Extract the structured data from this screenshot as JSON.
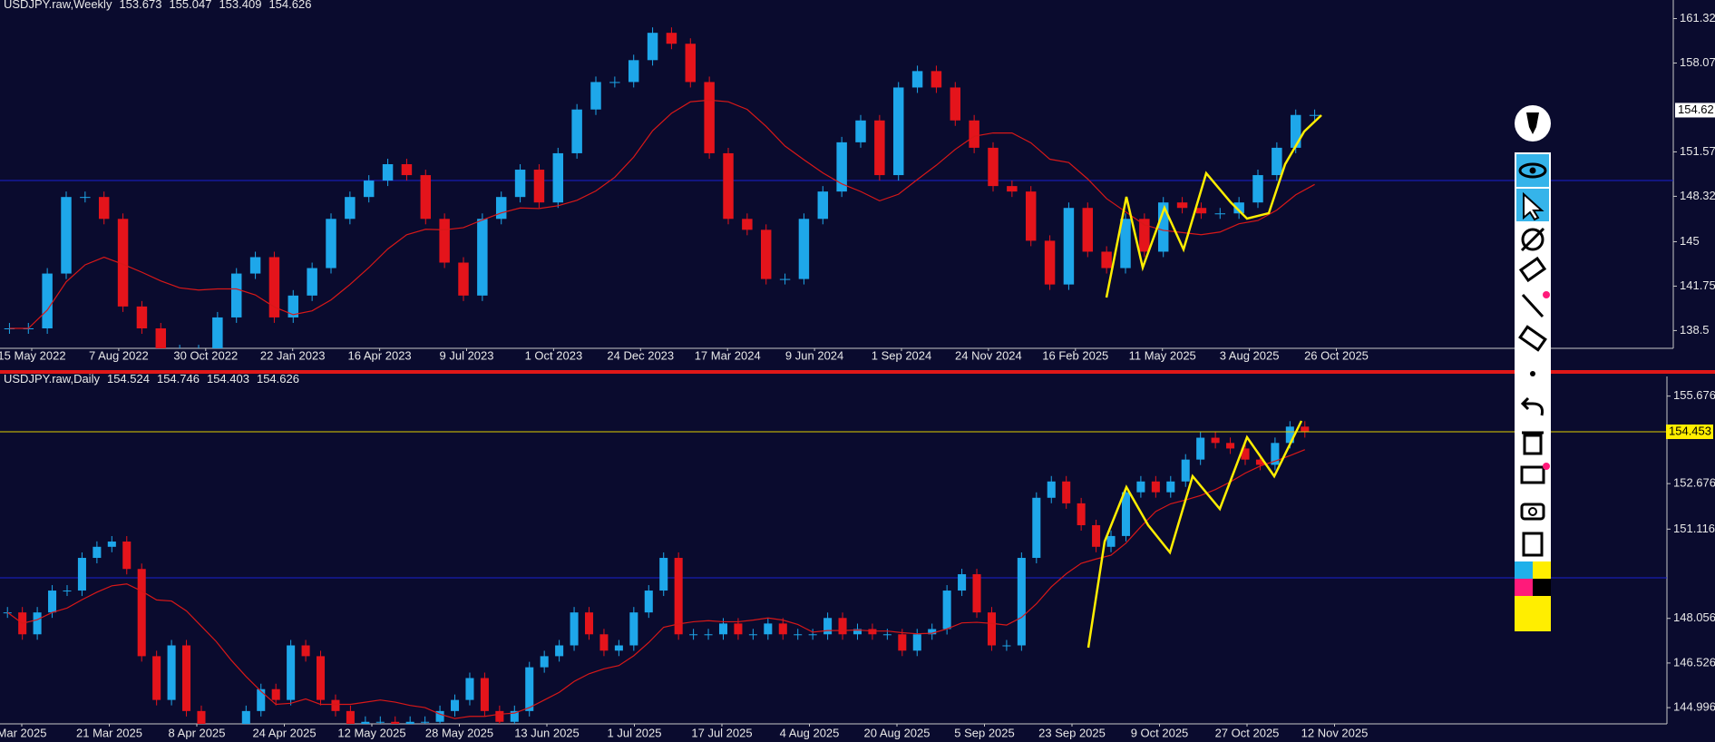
{
  "chart_data": [
    {
      "type": "candlestick",
      "title": "USDJPY.raw,Weekly",
      "ohlc": [
        153.673,
        155.047,
        153.409,
        154.626
      ],
      "ylim": [
        137.2,
        162.68
      ],
      "yticks": [
        161.32,
        158.07,
        151.57,
        148.32,
        145.0,
        141.75,
        138.5
      ],
      "last_price": 154.62,
      "categories": [
        "15 May 2022",
        "7 Aug 2022",
        "30 Oct 2022",
        "22 Jan 2023",
        "16 Apr 2023",
        "9 Jul 2023",
        "1 Oct 2023",
        "24 Dec 2023",
        "17 Mar 2024",
        "9 Jun 2024",
        "1 Sep 2024",
        "24 Nov 2024",
        "16 Feb 2025",
        "11 May 2025",
        "3 Aug 2025",
        "26 Oct 2025"
      ],
      "closes": [
        138.66,
        138.66,
        142.67,
        148.27,
        148.27,
        146.67,
        140.26,
        138.66,
        137.06,
        137.06,
        137.06,
        139.46,
        142.67,
        143.87,
        139.46,
        141.06,
        143.07,
        146.67,
        148.27,
        149.47,
        150.67,
        149.87,
        146.67,
        143.47,
        141.06,
        146.67,
        148.27,
        150.27,
        147.87,
        151.47,
        154.67,
        156.68,
        156.68,
        158.28,
        160.28,
        159.48,
        156.68,
        151.47,
        146.67,
        145.87,
        142.27,
        142.27,
        146.67,
        148.67,
        152.27,
        153.87,
        149.87,
        156.28,
        157.48,
        156.28,
        153.87,
        151.87,
        149.07,
        148.67,
        145.07,
        141.87,
        147.47,
        144.27,
        143.07,
        146.67,
        144.27,
        147.87,
        147.47,
        147.07,
        147.07,
        147.87,
        149.87,
        151.87,
        154.27,
        154.27
      ]
    },
    {
      "type": "candlestick",
      "title": "USDJPY.raw,Daily",
      "ohlc": [
        154.524,
        154.746,
        154.403,
        154.626
      ],
      "ylim": [
        144.44,
        156.35
      ],
      "yticks": [
        155.676,
        152.676,
        151.116,
        148.056,
        146.526,
        144.996
      ],
      "level_price": 154.453,
      "categories": [
        "Mar 2025",
        "21 Mar 2025",
        "8 Apr 2025",
        "24 Apr 2025",
        "12 May 2025",
        "28 May 2025",
        "13 Jun 2025",
        "1 Jul 2025",
        "17 Jul 2025",
        "4 Aug 2025",
        "20 Aug 2025",
        "5 Sep 2025",
        "23 Sep 2025",
        "9 Oct 2025",
        "27 Oct 2025",
        "12 Nov 2025"
      ],
      "closes": [
        148.26,
        147.51,
        148.26,
        149.01,
        149.01,
        150.13,
        150.51,
        150.69,
        149.75,
        146.76,
        145.26,
        147.13,
        144.88,
        143.76,
        143.76,
        143.76,
        144.88,
        145.63,
        145.26,
        147.13,
        146.76,
        145.26,
        144.88,
        143.76,
        144.51,
        144.51,
        144.14,
        144.51,
        144.51,
        144.88,
        145.26,
        146.01,
        144.88,
        144.51,
        144.88,
        146.38,
        146.76,
        147.13,
        148.26,
        147.51,
        146.95,
        147.13,
        148.26,
        149.01,
        150.13,
        147.51,
        147.51,
        147.51,
        147.88,
        147.51,
        147.51,
        147.88,
        147.51,
        147.51,
        147.51,
        148.07,
        147.51,
        147.69,
        147.51,
        147.51,
        146.95,
        147.51,
        147.69,
        149.01,
        149.57,
        148.26,
        147.13,
        147.13,
        150.13,
        152.19,
        152.75,
        152.0,
        151.25,
        150.51,
        150.88,
        152.38,
        152.75,
        152.38,
        152.75,
        153.5,
        154.25,
        154.07,
        153.88,
        153.5,
        153.32,
        154.07,
        154.63,
        154.44
      ]
    }
  ]
}
